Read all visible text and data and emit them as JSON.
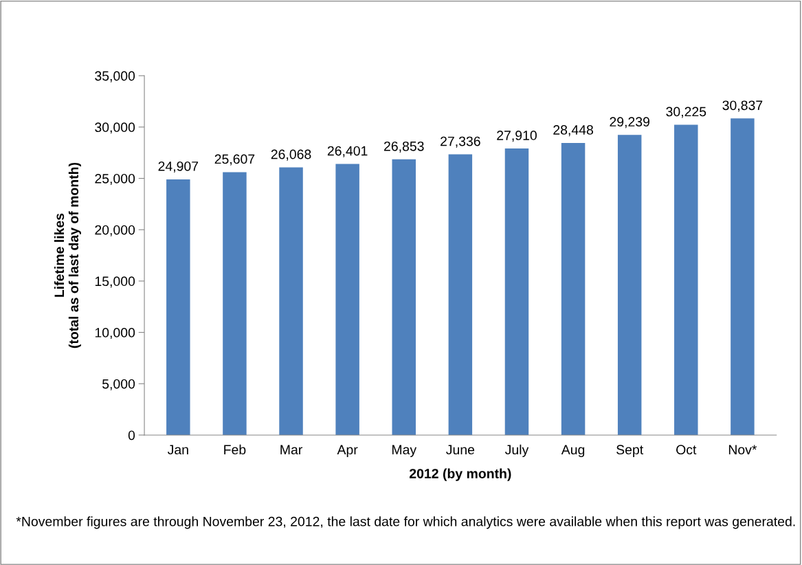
{
  "chart_data": {
    "type": "bar",
    "xlabel": "2012 (by month)",
    "ylabel": "Lifetime likes\n(total as of last day of month)",
    "categories": [
      "Jan",
      "Feb",
      "Mar",
      "Apr",
      "May",
      "June",
      "July",
      "Aug",
      "Sept",
      "Oct",
      "Nov*"
    ],
    "values": [
      24907,
      25607,
      26068,
      26401,
      26853,
      27336,
      27910,
      28448,
      29239,
      30225,
      30837
    ],
    "color": "#4f81bd",
    "value_labels": [
      "24,907",
      "25,607",
      "26,068",
      "26,401",
      "26,853",
      "27,336",
      "27,910",
      "28,448",
      "29,239",
      "30,225",
      "30,837"
    ],
    "ylim": [
      0,
      35000
    ],
    "yticks": [
      0,
      {
        "value": 5000,
        "label": "5,000"
      },
      {
        "value": 10000,
        "label": "10,000"
      },
      {
        "value": 15000,
        "label": "15,000"
      },
      {
        "value": 20000,
        "label": "20,000"
      },
      {
        "value": 25000,
        "label": "25,000"
      },
      {
        "value": 30000,
        "label": "30,000"
      },
      {
        "value": 35000,
        "label": "35,000"
      }
    ],
    "grid": false,
    "legend": false,
    "annotations": [
      "*November figures are through November 23, 2012, the last date for which analytics were available when this report was generated."
    ]
  }
}
